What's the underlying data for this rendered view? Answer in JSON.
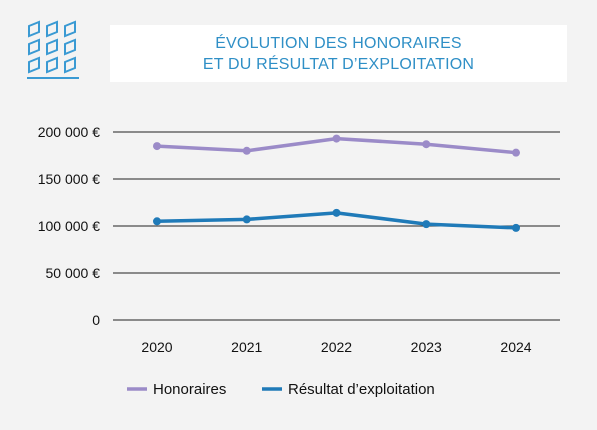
{
  "header": {
    "title_line1": "ÉVOLUTION DES HONORAIRES",
    "title_line2": "ET DU RÉSULTAT D’EXPLOITATION",
    "logo_icon": "building-windows-icon"
  },
  "chart_data": {
    "type": "line",
    "title": "ÉVOLUTION DES HONORAIRES ET DU RÉSULTAT D’EXPLOITATION",
    "categories": [
      "2020",
      "2021",
      "2022",
      "2023",
      "2024"
    ],
    "series": [
      {
        "name": "Honoraires",
        "color": "#9b8bc8",
        "values": [
          185000,
          180000,
          193000,
          187000,
          178000
        ]
      },
      {
        "name": "Résultat d’exploitation",
        "color": "#1f7ab8",
        "values": [
          105000,
          107000,
          114000,
          102000,
          98000
        ]
      }
    ],
    "ylim": [
      0,
      200000
    ],
    "yticks": [
      0,
      50000,
      100000,
      150000,
      200000
    ],
    "ytick_labels": [
      "0",
      "50 000 €",
      "100 000 €",
      "150 000 €",
      "200 000 €"
    ],
    "grid": true,
    "legend_position": "bottom",
    "xlabel": "",
    "ylabel": ""
  }
}
